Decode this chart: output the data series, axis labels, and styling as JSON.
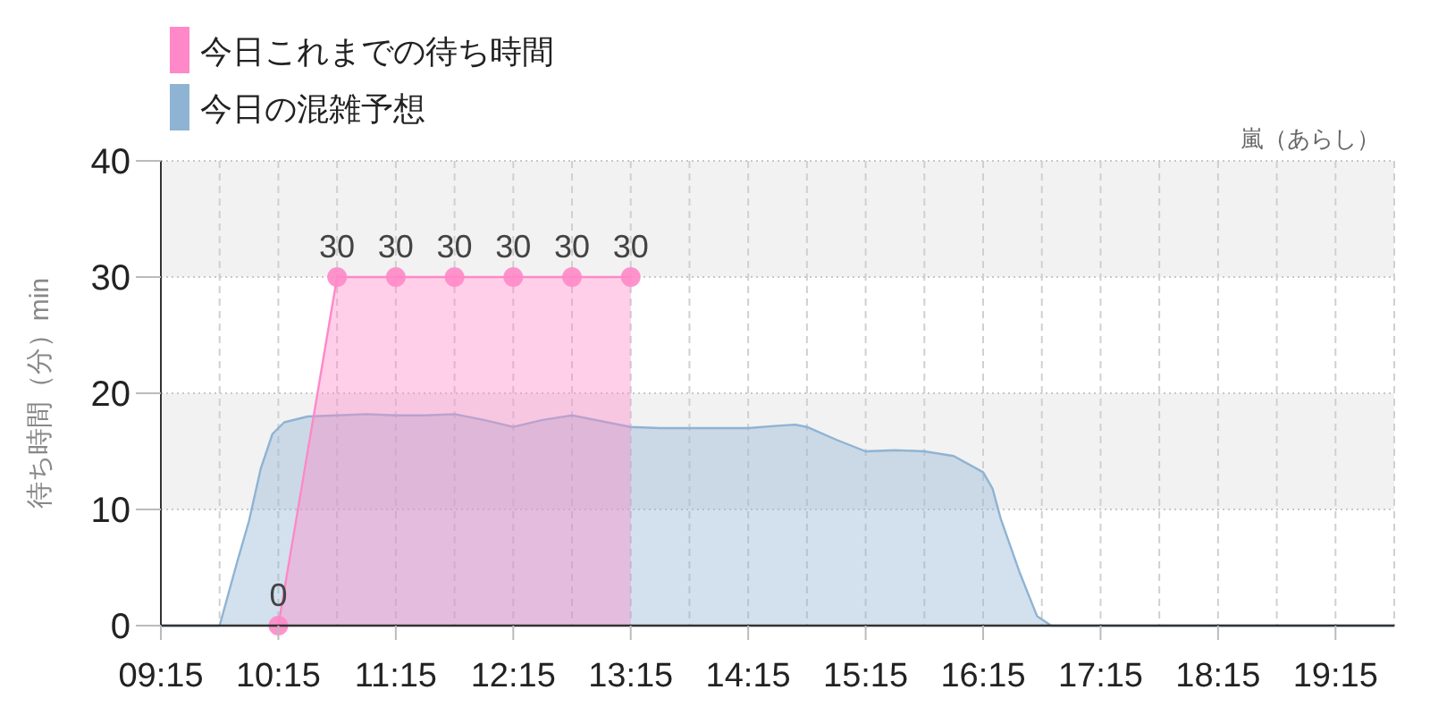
{
  "chart_data": {
    "type": "area",
    "title": "嵐（あらし）",
    "ylabel": "待ち時間（分）min",
    "legend": "top left",
    "grid": true,
    "xlim": [
      9.25,
      19.75
    ],
    "xticks": [
      {
        "value": 9.25,
        "label": "09:15"
      },
      {
        "value": 9.75,
        "label": null
      },
      {
        "value": 10.25,
        "label": "10:15"
      },
      {
        "value": 10.75,
        "label": null
      },
      {
        "value": 11.25,
        "label": "11:15"
      },
      {
        "value": 11.75,
        "label": null
      },
      {
        "value": 12.25,
        "label": "12:15"
      },
      {
        "value": 12.75,
        "label": null
      },
      {
        "value": 13.25,
        "label": "13:15"
      },
      {
        "value": 13.75,
        "label": null
      },
      {
        "value": 14.25,
        "label": "14:15"
      },
      {
        "value": 14.75,
        "label": null
      },
      {
        "value": 15.25,
        "label": "15:15"
      },
      {
        "value": 15.75,
        "label": null
      },
      {
        "value": 16.25,
        "label": "16:15"
      },
      {
        "value": 16.75,
        "label": null
      },
      {
        "value": 17.25,
        "label": "17:15"
      },
      {
        "value": 17.75,
        "label": null
      },
      {
        "value": 18.25,
        "label": "18:15"
      },
      {
        "value": 18.75,
        "label": null
      },
      {
        "value": 19.25,
        "label": "19:15"
      },
      {
        "value": 19.75,
        "label": null
      }
    ],
    "ylim": [
      0,
      40
    ],
    "yticks": [
      0,
      10,
      20,
      30,
      40
    ],
    "bands": [
      {
        "axis": "y",
        "from": 10,
        "to": 20,
        "color": "#f2f2f2"
      },
      {
        "axis": "y",
        "from": 30,
        "to": 40,
        "color": "#f2f2f2"
      }
    ],
    "series": [
      {
        "name": "今日これまでの待ち時間",
        "color": "#ff88c8",
        "marker": "circle",
        "x": [
          10.25,
          10.75,
          11.25,
          11.75,
          12.25,
          12.75,
          13.25
        ],
        "values": [
          0,
          30,
          30,
          30,
          30,
          30,
          30
        ],
        "value_labels": [
          "0",
          "30",
          "30",
          "30",
          "30",
          "30",
          "30"
        ]
      },
      {
        "name": "今日の混雑予想",
        "color": "#8fb3d3",
        "x": [
          9.25,
          9.5,
          9.75,
          9.9,
          10.0,
          10.1,
          10.2,
          10.3,
          10.5,
          10.75,
          11.0,
          11.25,
          11.5,
          11.75,
          12.0,
          12.25,
          12.5,
          12.75,
          13.0,
          13.25,
          13.5,
          14.0,
          14.25,
          14.5,
          14.65,
          14.75,
          15.0,
          15.25,
          15.5,
          15.75,
          16.0,
          16.25,
          16.33,
          16.4,
          16.56,
          16.71,
          16.83,
          17.0,
          17.25,
          17.75,
          18.25,
          18.75,
          19.25,
          19.75
        ],
        "values": [
          0,
          0,
          0,
          5.5,
          9,
          13.5,
          16.5,
          17.5,
          18,
          18.1,
          18.2,
          18.1,
          18.1,
          18.2,
          17.7,
          17.1,
          17.7,
          18.1,
          17.6,
          17.1,
          17,
          17,
          17,
          17.2,
          17.3,
          17.1,
          16,
          15,
          15.1,
          15,
          14.6,
          13.2,
          11.8,
          9.2,
          4.6,
          0.8,
          0,
          0,
          0,
          0,
          0,
          0,
          0,
          0
        ]
      }
    ]
  }
}
